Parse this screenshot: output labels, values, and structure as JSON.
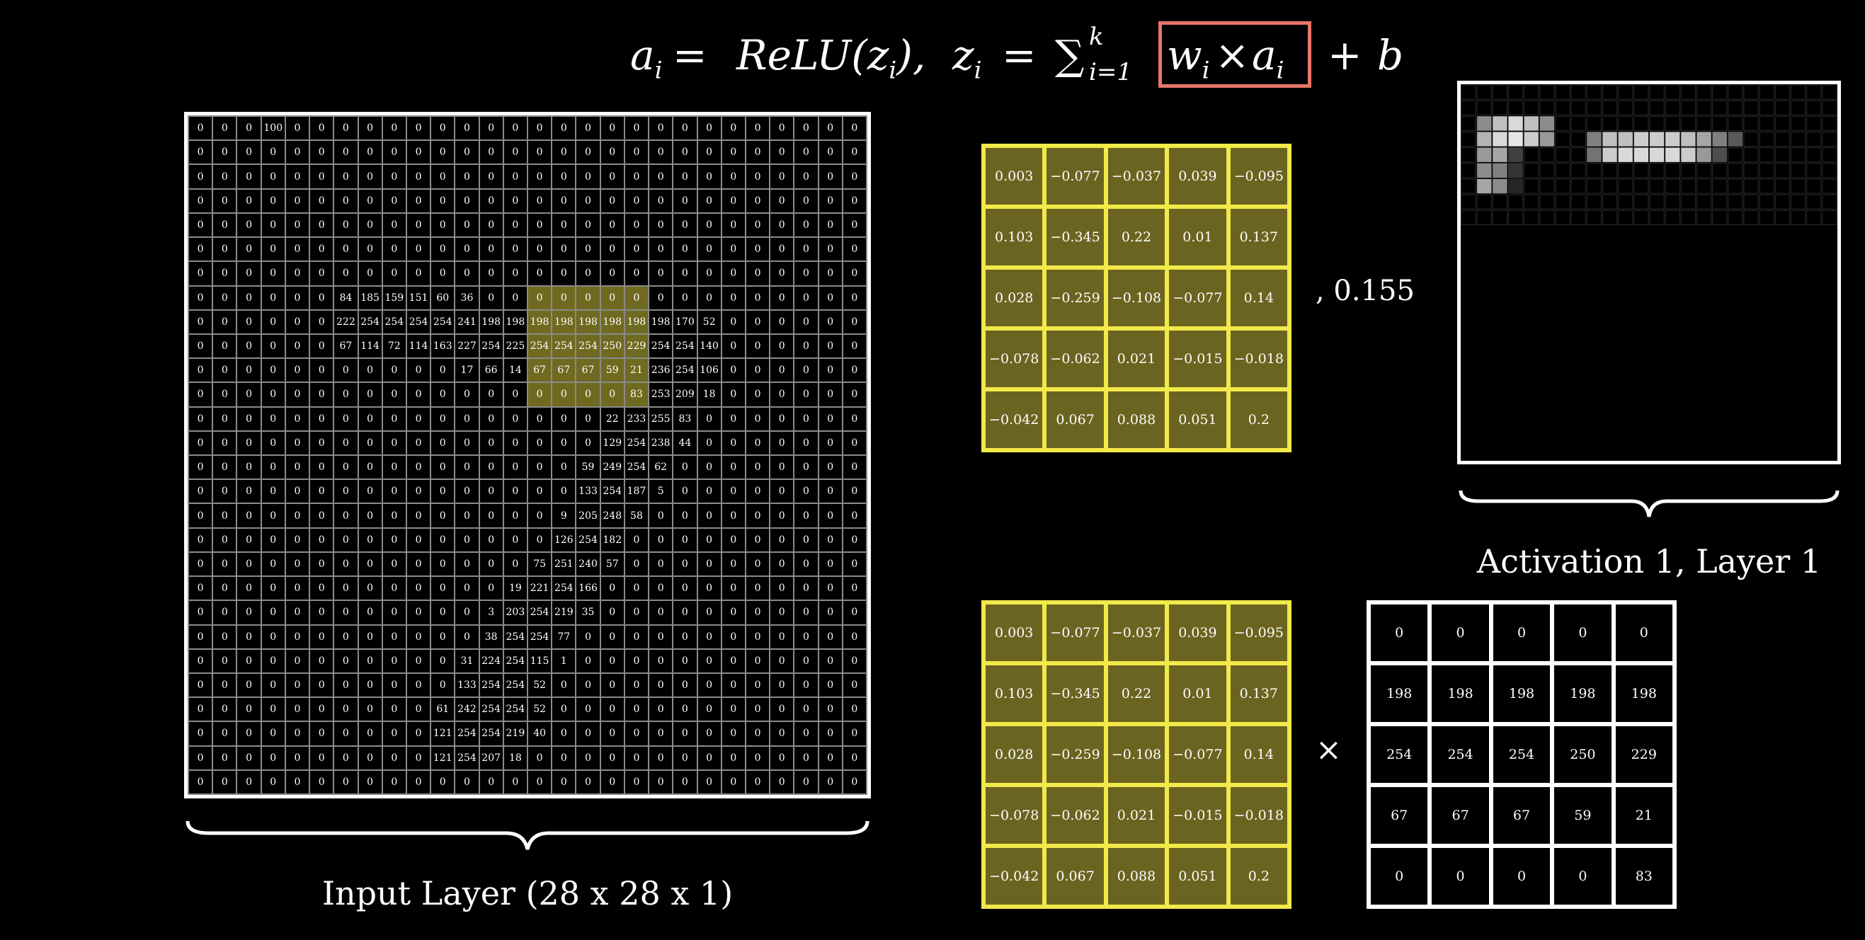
{
  "formula": {
    "a_i": "a",
    "i1": "i",
    "eq1": "=",
    "relu": "ReLU(z",
    "i2": "i",
    "relu_close": "),",
    "z_i": "z",
    "i3": "i",
    "eq2": "=",
    "sum": "∑",
    "sum_lower": "i=1",
    "sum_upper": "k",
    "w": "w",
    "i4": "i",
    "times": "×",
    "a": "a",
    "i5": "i",
    "plus": "+",
    "b": "b"
  },
  "input_layer": {
    "label": "Input Layer (28 x 28 x 1)",
    "rows": [
      [
        0,
        0,
        0,
        100,
        0,
        0,
        0,
        0,
        0,
        0,
        0,
        0,
        0,
        0,
        0,
        0,
        0,
        0,
        0,
        0,
        0,
        0,
        0,
        0,
        0,
        0,
        0,
        0
      ],
      [
        0,
        0,
        0,
        0,
        0,
        0,
        0,
        0,
        0,
        0,
        0,
        0,
        0,
        0,
        0,
        0,
        0,
        0,
        0,
        0,
        0,
        0,
        0,
        0,
        0,
        0,
        0,
        0
      ],
      [
        0,
        0,
        0,
        0,
        0,
        0,
        0,
        0,
        0,
        0,
        0,
        0,
        0,
        0,
        0,
        0,
        0,
        0,
        0,
        0,
        0,
        0,
        0,
        0,
        0,
        0,
        0,
        0
      ],
      [
        0,
        0,
        0,
        0,
        0,
        0,
        0,
        0,
        0,
        0,
        0,
        0,
        0,
        0,
        0,
        0,
        0,
        0,
        0,
        0,
        0,
        0,
        0,
        0,
        0,
        0,
        0,
        0
      ],
      [
        0,
        0,
        0,
        0,
        0,
        0,
        0,
        0,
        0,
        0,
        0,
        0,
        0,
        0,
        0,
        0,
        0,
        0,
        0,
        0,
        0,
        0,
        0,
        0,
        0,
        0,
        0,
        0
      ],
      [
        0,
        0,
        0,
        0,
        0,
        0,
        0,
        0,
        0,
        0,
        0,
        0,
        0,
        0,
        0,
        0,
        0,
        0,
        0,
        0,
        0,
        0,
        0,
        0,
        0,
        0,
        0,
        0
      ],
      [
        0,
        0,
        0,
        0,
        0,
        0,
        0,
        0,
        0,
        0,
        0,
        0,
        0,
        0,
        0,
        0,
        0,
        0,
        0,
        0,
        0,
        0,
        0,
        0,
        0,
        0,
        0,
        0
      ],
      [
        0,
        0,
        0,
        0,
        0,
        0,
        84,
        185,
        159,
        151,
        60,
        36,
        0,
        0,
        0,
        0,
        0,
        0,
        0,
        0,
        0,
        0,
        0,
        0,
        0,
        0,
        0,
        0
      ],
      [
        0,
        0,
        0,
        0,
        0,
        0,
        222,
        254,
        254,
        254,
        254,
        241,
        198,
        198,
        198,
        198,
        198,
        198,
        198,
        198,
        170,
        52,
        0,
        0,
        0,
        0,
        0,
        0
      ],
      [
        0,
        0,
        0,
        0,
        0,
        0,
        67,
        114,
        72,
        114,
        163,
        227,
        254,
        225,
        254,
        254,
        254,
        250,
        229,
        254,
        254,
        140,
        0,
        0,
        0,
        0,
        0,
        0
      ],
      [
        0,
        0,
        0,
        0,
        0,
        0,
        0,
        0,
        0,
        0,
        0,
        17,
        66,
        14,
        67,
        67,
        67,
        59,
        21,
        236,
        254,
        106,
        0,
        0,
        0,
        0,
        0,
        0
      ],
      [
        0,
        0,
        0,
        0,
        0,
        0,
        0,
        0,
        0,
        0,
        0,
        0,
        0,
        0,
        0,
        0,
        0,
        0,
        83,
        253,
        209,
        18,
        0,
        0,
        0,
        0,
        0,
        0
      ],
      [
        0,
        0,
        0,
        0,
        0,
        0,
        0,
        0,
        0,
        0,
        0,
        0,
        0,
        0,
        0,
        0,
        0,
        22,
        233,
        255,
        83,
        0,
        0,
        0,
        0,
        0,
        0,
        0
      ],
      [
        0,
        0,
        0,
        0,
        0,
        0,
        0,
        0,
        0,
        0,
        0,
        0,
        0,
        0,
        0,
        0,
        0,
        129,
        254,
        238,
        44,
        0,
        0,
        0,
        0,
        0,
        0,
        0
      ],
      [
        0,
        0,
        0,
        0,
        0,
        0,
        0,
        0,
        0,
        0,
        0,
        0,
        0,
        0,
        0,
        0,
        59,
        249,
        254,
        62,
        0,
        0,
        0,
        0,
        0,
        0,
        0,
        0
      ],
      [
        0,
        0,
        0,
        0,
        0,
        0,
        0,
        0,
        0,
        0,
        0,
        0,
        0,
        0,
        0,
        0,
        133,
        254,
        187,
        5,
        0,
        0,
        0,
        0,
        0,
        0,
        0,
        0
      ],
      [
        0,
        0,
        0,
        0,
        0,
        0,
        0,
        0,
        0,
        0,
        0,
        0,
        0,
        0,
        0,
        9,
        205,
        248,
        58,
        0,
        0,
        0,
        0,
        0,
        0,
        0,
        0,
        0
      ],
      [
        0,
        0,
        0,
        0,
        0,
        0,
        0,
        0,
        0,
        0,
        0,
        0,
        0,
        0,
        0,
        126,
        254,
        182,
        0,
        0,
        0,
        0,
        0,
        0,
        0,
        0,
        0,
        0
      ],
      [
        0,
        0,
        0,
        0,
        0,
        0,
        0,
        0,
        0,
        0,
        0,
        0,
        0,
        0,
        75,
        251,
        240,
        57,
        0,
        0,
        0,
        0,
        0,
        0,
        0,
        0,
        0,
        0
      ],
      [
        0,
        0,
        0,
        0,
        0,
        0,
        0,
        0,
        0,
        0,
        0,
        0,
        0,
        19,
        221,
        254,
        166,
        0,
        0,
        0,
        0,
        0,
        0,
        0,
        0,
        0,
        0,
        0
      ],
      [
        0,
        0,
        0,
        0,
        0,
        0,
        0,
        0,
        0,
        0,
        0,
        0,
        3,
        203,
        254,
        219,
        35,
        0,
        0,
        0,
        0,
        0,
        0,
        0,
        0,
        0,
        0,
        0
      ],
      [
        0,
        0,
        0,
        0,
        0,
        0,
        0,
        0,
        0,
        0,
        0,
        0,
        38,
        254,
        254,
        77,
        0,
        0,
        0,
        0,
        0,
        0,
        0,
        0,
        0,
        0,
        0,
        0
      ],
      [
        0,
        0,
        0,
        0,
        0,
        0,
        0,
        0,
        0,
        0,
        0,
        31,
        224,
        254,
        115,
        1,
        0,
        0,
        0,
        0,
        0,
        0,
        0,
        0,
        0,
        0,
        0,
        0
      ],
      [
        0,
        0,
        0,
        0,
        0,
        0,
        0,
        0,
        0,
        0,
        0,
        133,
        254,
        254,
        52,
        0,
        0,
        0,
        0,
        0,
        0,
        0,
        0,
        0,
        0,
        0,
        0,
        0
      ],
      [
        0,
        0,
        0,
        0,
        0,
        0,
        0,
        0,
        0,
        0,
        61,
        242,
        254,
        254,
        52,
        0,
        0,
        0,
        0,
        0,
        0,
        0,
        0,
        0,
        0,
        0,
        0,
        0
      ],
      [
        0,
        0,
        0,
        0,
        0,
        0,
        0,
        0,
        0,
        0,
        121,
        254,
        254,
        219,
        40,
        0,
        0,
        0,
        0,
        0,
        0,
        0,
        0,
        0,
        0,
        0,
        0,
        0
      ],
      [
        0,
        0,
        0,
        0,
        0,
        0,
        0,
        0,
        0,
        0,
        121,
        254,
        207,
        18,
        0,
        0,
        0,
        0,
        0,
        0,
        0,
        0,
        0,
        0,
        0,
        0,
        0,
        0
      ],
      [
        0,
        0,
        0,
        0,
        0,
        0,
        0,
        0,
        0,
        0,
        0,
        0,
        0,
        0,
        0,
        0,
        0,
        0,
        0,
        0,
        0,
        0,
        0,
        0,
        0,
        0,
        0,
        0
      ]
    ],
    "highlight_rows": [
      7,
      11
    ],
    "highlight_cols": [
      14,
      18
    ]
  },
  "kernel": {
    "rows": [
      [
        "0.003",
        "−0.077",
        "−0.037",
        "0.039",
        "−0.095"
      ],
      [
        "0.103",
        "−0.345",
        "0.22",
        "0.01",
        "0.137"
      ],
      [
        "0.028",
        "−0.259",
        "−0.108",
        "−0.077",
        "0.14"
      ],
      [
        "−0.078",
        "−0.062",
        "0.021",
        "−0.015",
        "−0.018"
      ],
      [
        "−0.042",
        "0.067",
        "0.088",
        "0.051",
        "0.2"
      ]
    ]
  },
  "bias": ", 0.155",
  "multiply_symbol": "×",
  "patch": {
    "rows": [
      [
        "0",
        "0",
        "0",
        "0",
        "0"
      ],
      [
        "198",
        "198",
        "198",
        "198",
        "198"
      ],
      [
        "254",
        "254",
        "254",
        "250",
        "229"
      ],
      [
        "67",
        "67",
        "67",
        "59",
        "21"
      ],
      [
        "0",
        "0",
        "0",
        "0",
        "83"
      ]
    ]
  },
  "activation": {
    "label": "Activation 1, Layer 1",
    "size": 24,
    "bright_cells": [
      {
        "r": 2,
        "c": 1,
        "v": 0.55
      },
      {
        "r": 2,
        "c": 2,
        "v": 0.75
      },
      {
        "r": 2,
        "c": 3,
        "v": 0.85
      },
      {
        "r": 2,
        "c": 4,
        "v": 0.75
      },
      {
        "r": 2,
        "c": 5,
        "v": 0.55
      },
      {
        "r": 3,
        "c": 1,
        "v": 0.7
      },
      {
        "r": 3,
        "c": 2,
        "v": 0.85
      },
      {
        "r": 3,
        "c": 3,
        "v": 0.9
      },
      {
        "r": 3,
        "c": 4,
        "v": 0.8
      },
      {
        "r": 3,
        "c": 5,
        "v": 0.6
      },
      {
        "r": 3,
        "c": 8,
        "v": 0.5
      },
      {
        "r": 3,
        "c": 9,
        "v": 0.75
      },
      {
        "r": 3,
        "c": 10,
        "v": 0.75
      },
      {
        "r": 3,
        "c": 11,
        "v": 0.8
      },
      {
        "r": 3,
        "c": 12,
        "v": 0.8
      },
      {
        "r": 3,
        "c": 13,
        "v": 0.8
      },
      {
        "r": 3,
        "c": 14,
        "v": 0.75
      },
      {
        "r": 3,
        "c": 15,
        "v": 0.65
      },
      {
        "r": 3,
        "c": 16,
        "v": 0.5
      },
      {
        "r": 3,
        "c": 17,
        "v": 0.35
      },
      {
        "r": 4,
        "c": 1,
        "v": 0.6
      },
      {
        "r": 4,
        "c": 2,
        "v": 0.65
      },
      {
        "r": 4,
        "c": 3,
        "v": 0.25
      },
      {
        "r": 4,
        "c": 8,
        "v": 0.45
      },
      {
        "r": 4,
        "c": 9,
        "v": 0.8
      },
      {
        "r": 4,
        "c": 10,
        "v": 0.85
      },
      {
        "r": 4,
        "c": 11,
        "v": 0.85
      },
      {
        "r": 4,
        "c": 12,
        "v": 0.85
      },
      {
        "r": 4,
        "c": 13,
        "v": 0.85
      },
      {
        "r": 4,
        "c": 14,
        "v": 0.8
      },
      {
        "r": 4,
        "c": 15,
        "v": 0.6
      },
      {
        "r": 4,
        "c": 16,
        "v": 0.3
      },
      {
        "r": 5,
        "c": 1,
        "v": 0.55
      },
      {
        "r": 5,
        "c": 2,
        "v": 0.5
      },
      {
        "r": 5,
        "c": 3,
        "v": 0.2
      },
      {
        "r": 6,
        "c": 1,
        "v": 0.65
      },
      {
        "r": 6,
        "c": 2,
        "v": 0.55
      },
      {
        "r": 6,
        "c": 3,
        "v": 0.15
      }
    ]
  },
  "colors": {
    "kernel_border": "#f2e94a",
    "kernel_fill": "#6b6420",
    "highlight": "#6f6a1f",
    "formula_box": "#e8756a"
  }
}
